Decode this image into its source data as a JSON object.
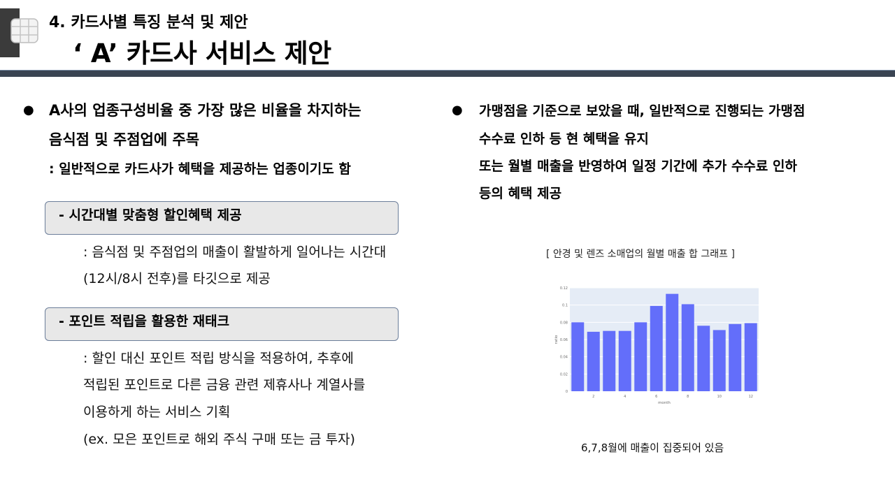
{
  "header": {
    "section_title": "4.  카드사별 특징 분석 및  제안",
    "main_title": "‘ A’ 카드사 서비스 제안"
  },
  "left": {
    "bullet_line1": "A사의 업종구성비율 중 가장 많은 비율을 차지하는",
    "bullet_line2": "음식점 및 주점업에 주목",
    "bullet_sub": ": 일반적으로 카드사가 혜택을 제공하는 업종이기도 함",
    "box1_label": "- 시간대별 맞춤형 할인혜택 제공",
    "box1_desc1": ": 음식점 및 주점업의 매출이 활발하게 일어나는 시간대",
    "box1_desc2": "(12시/8시 전후)를 타깃으로 제공",
    "box2_label": "- 포인트 적립을 활용한 재태크",
    "box2_desc1": ": 할인 대신 포인트 적립 방식을 적용하여, 추후에",
    "box2_desc2": "적립된 포인트로 다른 금융 관련 제휴사나 계열사를",
    "box2_desc3": "이용하게 하는 서비스 기획",
    "box2_desc4": "(ex. 모은 포인트로 해외 주식 구매 또는 금 투자)"
  },
  "right": {
    "line1": "가맹점을 기준으로 보았을 때, 일반적으로 진행되는 가맹점",
    "line2": "수수료 인하 등 현 혜택을 유지",
    "line3": "또는 월별 매출을 반영하여 일정 기간에 추가 수수료 인하",
    "line4": "등의 혜택 제공",
    "chart_caption": "[ 안경 및 렌즈 소매업의 월별 매출 합 그래프 ]",
    "chart_note": "6,7,8월에 매출이 집중되어 있음"
  },
  "chart_data": {
    "type": "bar",
    "categories": [
      1,
      2,
      3,
      4,
      5,
      6,
      7,
      8,
      9,
      10,
      11,
      12
    ],
    "values": [
      0.08,
      0.069,
      0.07,
      0.07,
      0.08,
      0.099,
      0.113,
      0.101,
      0.076,
      0.071,
      0.078,
      0.079
    ],
    "ylim": [
      0,
      0.12
    ],
    "yticks": [
      0,
      0.02,
      0.04,
      0.06,
      0.08,
      0.1,
      0.12
    ],
    "xticks": [
      2,
      4,
      6,
      8,
      10,
      12
    ],
    "xlabel": "month",
    "ylabel": "ratio",
    "bar_color": "#636efa",
    "plot_bg": "#e5ecf6",
    "grid": true
  }
}
